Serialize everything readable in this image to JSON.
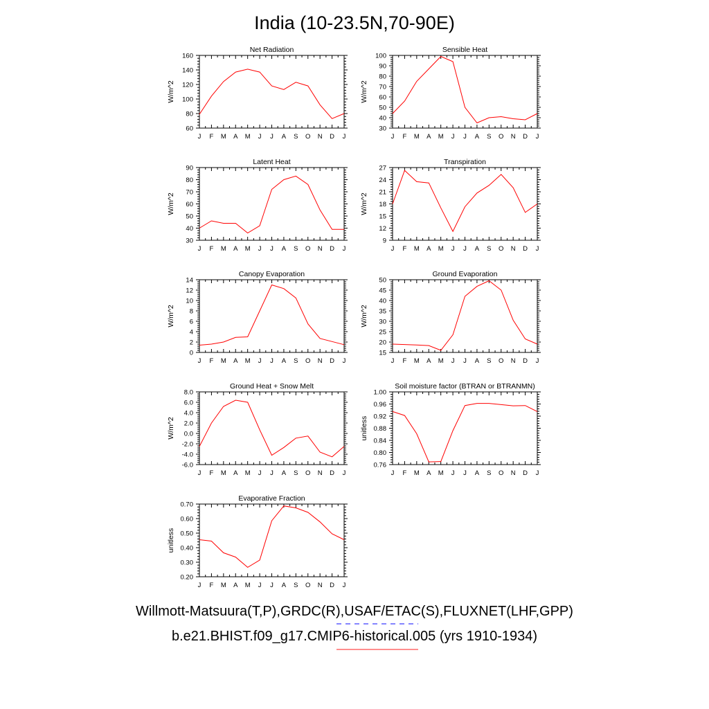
{
  "title": "India (10-23.5N,70-90E)",
  "legend": [
    {
      "label": "Willmott-Matsuura(T,P),GRDC(R),USAF/ETAC(S),FLUXNET(LHF,GPP)",
      "color": "#3a3aff",
      "dash": true
    },
    {
      "label": "b.e21.BHIST.f09_g17.CMIP6-historical.005 (yrs 1910-1934)",
      "color": "#ff4a4a",
      "dash": false
    }
  ],
  "chart_data": [
    {
      "type": "line",
      "title": "Net Radiation",
      "ylabel": "W/m^2",
      "x": [
        "J",
        "F",
        "M",
        "A",
        "M",
        "J",
        "J",
        "A",
        "S",
        "O",
        "N",
        "D",
        "J"
      ],
      "ylim": [
        60,
        160
      ],
      "yticks": [
        "60",
        "80",
        "100",
        "120",
        "140",
        "160"
      ],
      "series": [
        {
          "color": "#ff0000",
          "values": [
            79,
            104,
            124,
            137,
            141,
            137,
            118,
            113,
            123,
            118,
            92,
            73,
            80
          ]
        }
      ]
    },
    {
      "type": "line",
      "title": "Sensible Heat",
      "ylabel": "W/m^2",
      "x": [
        "J",
        "F",
        "M",
        "A",
        "M",
        "J",
        "J",
        "A",
        "S",
        "O",
        "N",
        "D",
        "J"
      ],
      "ylim": [
        30,
        100
      ],
      "yticks": [
        "30",
        "40",
        "50",
        "60",
        "70",
        "80",
        "90",
        "100"
      ],
      "series": [
        {
          "color": "#ff0000",
          "values": [
            44,
            56,
            75,
            87,
            99,
            94,
            50,
            35,
            40,
            41,
            39,
            38,
            44
          ]
        }
      ]
    },
    {
      "type": "line",
      "title": "Latent Heat",
      "ylabel": "W/m^2",
      "x": [
        "J",
        "F",
        "M",
        "A",
        "M",
        "J",
        "J",
        "A",
        "S",
        "O",
        "N",
        "D",
        "J"
      ],
      "ylim": [
        30,
        90
      ],
      "yticks": [
        "30",
        "40",
        "50",
        "60",
        "70",
        "80",
        "90"
      ],
      "series": [
        {
          "color": "#ff0000",
          "values": [
            40,
            46,
            44,
            44,
            36,
            42,
            72,
            80,
            83,
            76,
            55,
            39,
            39
          ]
        }
      ]
    },
    {
      "type": "line",
      "title": "Transpiration",
      "ylabel": "W/m^2",
      "x": [
        "J",
        "F",
        "M",
        "A",
        "M",
        "J",
        "J",
        "A",
        "S",
        "O",
        "N",
        "D",
        "J"
      ],
      "ylim": [
        9,
        27
      ],
      "yticks": [
        "9",
        "12",
        "15",
        "18",
        "21",
        "24",
        "27"
      ],
      "series": [
        {
          "color": "#ff0000",
          "values": [
            18,
            26.3,
            23.5,
            23.2,
            17,
            11.2,
            17.3,
            20.7,
            22.6,
            25.3,
            22,
            15.9,
            18
          ]
        }
      ]
    },
    {
      "type": "line",
      "title": "Canopy Evaporation",
      "ylabel": "W/m^2",
      "x": [
        "J",
        "F",
        "M",
        "A",
        "M",
        "J",
        "J",
        "A",
        "S",
        "O",
        "N",
        "D",
        "J"
      ],
      "ylim": [
        0,
        14
      ],
      "yticks": [
        "0",
        "2",
        "4",
        "6",
        "8",
        "10",
        "12",
        "14"
      ],
      "series": [
        {
          "color": "#ff0000",
          "values": [
            1.4,
            1.6,
            2,
            2.9,
            3,
            8,
            13,
            12.3,
            10.5,
            5.5,
            2.7,
            2.1,
            1.5
          ]
        }
      ]
    },
    {
      "type": "line",
      "title": "Ground Evaporation",
      "ylabel": "W/m^2",
      "x": [
        "J",
        "F",
        "M",
        "A",
        "M",
        "J",
        "J",
        "A",
        "S",
        "O",
        "N",
        "D",
        "J"
      ],
      "ylim": [
        15,
        50
      ],
      "yticks": [
        "15",
        "20",
        "25",
        "30",
        "35",
        "40",
        "45",
        "50"
      ],
      "series": [
        {
          "color": "#ff0000",
          "values": [
            19,
            18.8,
            18.6,
            18.3,
            16,
            23.5,
            42,
            46.8,
            49.5,
            45,
            30.5,
            21.5,
            19
          ]
        }
      ]
    },
    {
      "type": "line",
      "title": "Ground Heat + Snow Melt",
      "ylabel": "W/m^2",
      "x": [
        "J",
        "F",
        "M",
        "A",
        "M",
        "J",
        "J",
        "A",
        "S",
        "O",
        "N",
        "D",
        "J"
      ],
      "ylim": [
        -6,
        8
      ],
      "yticks": [
        "-6.0",
        "-4.0",
        "-2.0",
        "0.0",
        "2.0",
        "4.0",
        "6.0",
        "8.0"
      ],
      "series": [
        {
          "color": "#ff0000",
          "values": [
            -2.5,
            2,
            5.2,
            6.4,
            6,
            0.7,
            -4.2,
            -2.7,
            -0.9,
            -0.5,
            -3.6,
            -4.5,
            -2.5
          ]
        }
      ]
    },
    {
      "type": "line",
      "title": "Soil moisture factor (BTRAN or BTRANMN)",
      "ylabel": "unitless",
      "x": [
        "J",
        "F",
        "M",
        "A",
        "M",
        "J",
        "J",
        "A",
        "S",
        "O",
        "N",
        "D",
        "J"
      ],
      "ylim": [
        0.76,
        1.0
      ],
      "yticks": [
        "0.76",
        "0.80",
        "0.84",
        "0.88",
        "0.92",
        "0.96",
        "1.00"
      ],
      "series": [
        {
          "color": "#ff0000",
          "values": [
            0.935,
            0.922,
            0.862,
            0.769,
            0.77,
            0.872,
            0.955,
            0.962,
            0.962,
            0.958,
            0.954,
            0.955,
            0.935
          ]
        }
      ]
    },
    {
      "type": "line",
      "title": "Evaporative Fraction",
      "ylabel": "unitless",
      "x": [
        "J",
        "F",
        "M",
        "A",
        "M",
        "J",
        "J",
        "A",
        "S",
        "O",
        "N",
        "D",
        "J"
      ],
      "ylim": [
        0.2,
        0.7
      ],
      "yticks": [
        "0.20",
        "0.30",
        "0.40",
        "0.50",
        "0.60",
        "0.70"
      ],
      "series": [
        {
          "color": "#ff0000",
          "values": [
            0.455,
            0.445,
            0.365,
            0.335,
            0.265,
            0.315,
            0.585,
            0.687,
            0.674,
            0.643,
            0.577,
            0.495,
            0.455
          ]
        }
      ]
    }
  ]
}
